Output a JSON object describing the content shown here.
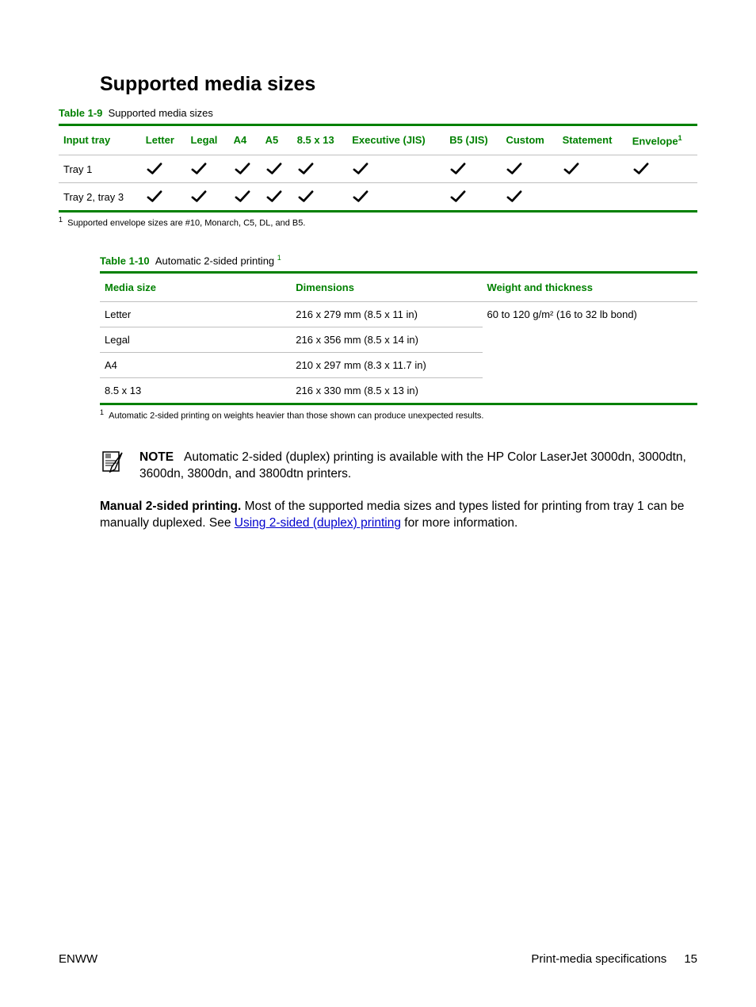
{
  "colors": {
    "accent": "#008000",
    "rule": "#bfbfbf",
    "link": "#0000cc",
    "text": "#000000",
    "check_stroke": "#000000"
  },
  "heading": "Supported media sizes",
  "table1": {
    "caption_label": "Table 1-9",
    "caption_text": "Supported media sizes",
    "columns": [
      "Input tray",
      "Letter",
      "Legal",
      "A4",
      "A5",
      "8.5 x 13",
      "Executive (JIS)",
      "B5 (JIS)",
      "Custom",
      "Statement",
      "Envelope"
    ],
    "envelope_sup": "1",
    "rows": [
      {
        "label": "Tray 1",
        "checks": [
          true,
          true,
          true,
          true,
          true,
          true,
          true,
          true,
          true,
          true
        ]
      },
      {
        "label": "Tray 2, tray 3",
        "checks": [
          true,
          true,
          true,
          true,
          true,
          true,
          true,
          true,
          false,
          false
        ]
      }
    ],
    "footnote_num": "1",
    "footnote_text": "Supported envelope sizes are #10, Monarch, C5, DL, and B5."
  },
  "table2": {
    "caption_label": "Table 1-10",
    "caption_text": "Automatic 2-sided printing",
    "caption_sup": "1",
    "columns": [
      "Media size",
      "Dimensions",
      "Weight and thickness"
    ],
    "rows": [
      {
        "size": "Letter",
        "dim": "216 x 279 mm (8.5 x 11 in)",
        "wt": "60 to 120 g/m² (16 to 32 lb bond)"
      },
      {
        "size": "Legal",
        "dim": "216 x 356 mm (8.5 x 14 in)",
        "wt": ""
      },
      {
        "size": "A4",
        "dim": "210 x 297 mm (8.3 x 11.7 in)",
        "wt": ""
      },
      {
        "size": "8.5 x 13",
        "dim": "216 x 330 mm (8.5 x 13 in)",
        "wt": ""
      }
    ],
    "footnote_num": "1",
    "footnote_text": "Automatic 2-sided printing on weights heavier than those shown can produce unexpected results."
  },
  "note": {
    "label": "NOTE",
    "text": "Automatic 2-sided (duplex) printing is available with the HP Color LaserJet 3000dn, 3000dtn, 3600dn, 3800dn, and 3800dtn printers."
  },
  "manual": {
    "lead": "Manual 2-sided printing.",
    "before_link": "Most of the supported media sizes and types listed for printing from tray 1 can be manually duplexed. See ",
    "link_text": "Using 2-sided (duplex) printing",
    "after_link": " for more information."
  },
  "footer": {
    "left": "ENWW",
    "right_label": "Print-media specifications",
    "page": "15"
  }
}
